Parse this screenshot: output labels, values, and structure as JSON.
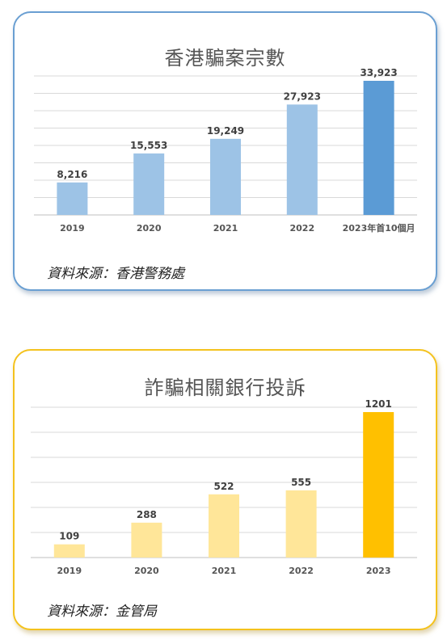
{
  "chart_data": [
    {
      "type": "bar",
      "title": "香港騙案宗數",
      "categories": [
        "2019",
        "2020",
        "2021",
        "2022",
        "2023年首10個月"
      ],
      "values": [
        8216,
        15553,
        19249,
        27923,
        33923
      ],
      "value_labels": [
        "8,216",
        "15,553",
        "19,249",
        "27,923",
        "33,923"
      ],
      "ylim": [
        0,
        40000
      ],
      "grid": true,
      "bar_colors": [
        "#9dc3e6",
        "#9dc3e6",
        "#9dc3e6",
        "#9dc3e6",
        "#5b9bd5"
      ],
      "source": "資料來源：香港警務處"
    },
    {
      "type": "bar",
      "title": "詐騙相關銀行投訴",
      "categories": [
        "2019",
        "2020",
        "2021",
        "2022",
        "2023"
      ],
      "values": [
        109,
        288,
        522,
        555,
        1201
      ],
      "value_labels": [
        "109",
        "288",
        "522",
        "555",
        "1201"
      ],
      "ylim": [
        0,
        1200
      ],
      "grid": true,
      "bar_colors": [
        "#ffe699",
        "#ffe699",
        "#ffe699",
        "#ffe699",
        "#ffc000"
      ],
      "source": "資料來源：金管局"
    }
  ],
  "colors": {
    "card1_border": "#6a9fd2",
    "card2_border": "#f4c21d",
    "gridline": "#d9d9d9",
    "axis": "#bfbfbf"
  }
}
